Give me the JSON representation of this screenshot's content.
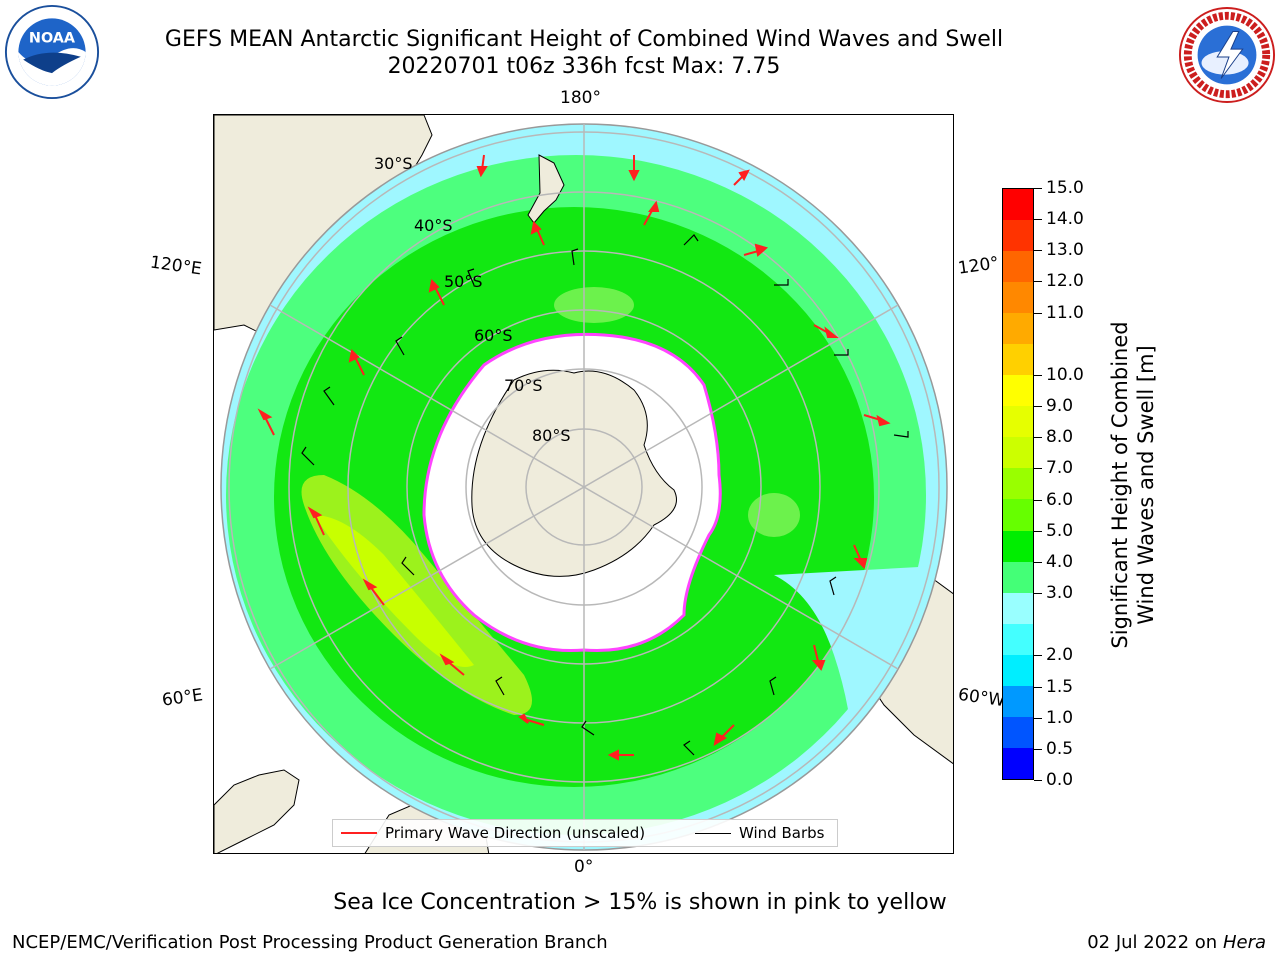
{
  "title": {
    "line1": "GEFS MEAN Antarctic Significant Height of Combined Wind Waves and Swell",
    "line2": "20220701 t06z 336h fcst   Max: 7.75"
  },
  "logos": {
    "left": {
      "icon": "noaa-logo",
      "text": "NOAA"
    },
    "right": {
      "icon": "nws-logo"
    }
  },
  "map": {
    "projection": "south-polar-stereographic",
    "lon_labels": {
      "top": "180°",
      "upper_left": "120°E",
      "upper_right": "120°",
      "lower_left": "60°E",
      "lower_right": "60°W",
      "bottom": "0°"
    },
    "lat_labels": [
      "30°S",
      "40°S",
      "50°S",
      "60°S",
      "70°S",
      "80°S"
    ],
    "colors": {
      "land": "#efecdc",
      "ocean_low": "#9ff7ff",
      "ocean_mid": "#4dff7e",
      "ocean_high": "#12e812",
      "ocean_peak": "#9cf21c",
      "sea_ice_edge": "#ff44ff",
      "antarctica": "#ffffff",
      "wave_arrow": "#ff2020",
      "wind_barb": "#000000",
      "gridline": "#b8b8b8"
    }
  },
  "legend": {
    "wave_direction": "Primary Wave Direction (unscaled)",
    "wind_barbs": "Wind Barbs",
    "wave_color": "#ff2020",
    "barb_color": "#000000"
  },
  "colorbar": {
    "title_line1": "Significant Height of Combined",
    "title_line2": "Wind Waves and Swell [m]",
    "ticks": [
      "15.0",
      "14.0",
      "13.0",
      "12.0",
      "11.0",
      "10.0",
      "9.0",
      "8.0",
      "7.0",
      "6.0",
      "5.0",
      "4.0",
      "3.0",
      "2.0",
      "1.5",
      "1.0",
      "0.5",
      "0.0"
    ],
    "colors_top_to_bottom": [
      "#ff0000",
      "#ff3300",
      "#ff6600",
      "#ff8800",
      "#ffaa00",
      "#ffd000",
      "#ffff00",
      "#e6ff00",
      "#ccff00",
      "#99ff00",
      "#66ff00",
      "#00ee00",
      "#44ff77",
      "#99ffff",
      "#44ffff",
      "#00eeff",
      "#0099ff",
      "#0055ff",
      "#0000ff"
    ]
  },
  "note": "Sea Ice Concentration > 15% is shown in pink to yellow",
  "footer": {
    "left": "NCEP/EMC/Verification Post Processing Product Generation Branch",
    "right_prefix": "02 Jul 2022 on ",
    "right_italic": "Hera"
  }
}
